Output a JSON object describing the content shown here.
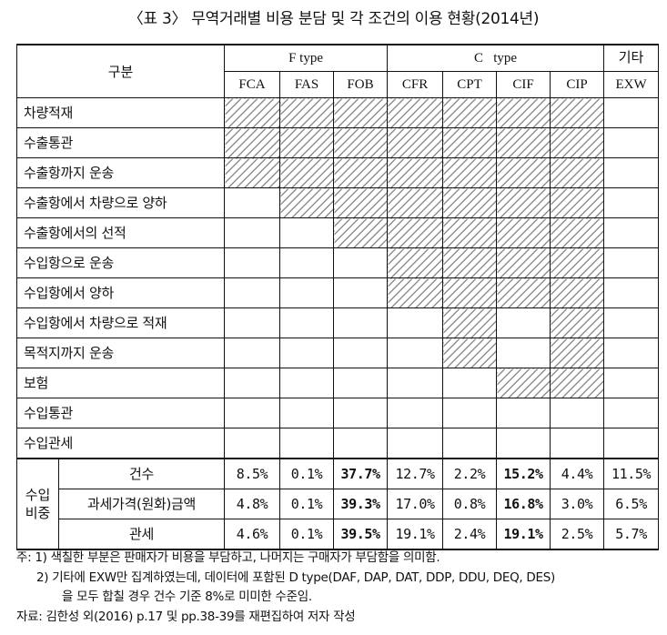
{
  "title": "〈표 3〉 무역거래별 비용 분담 및 각 조건의 이용 현황(2014년)",
  "header": {
    "gubun": "구분",
    "groups": [
      {
        "label": "F type",
        "colspan": 3
      },
      {
        "label": "C   type",
        "colspan": 4
      },
      {
        "label": "기타",
        "colspan": 1
      }
    ],
    "terms": [
      "FCA",
      "FAS",
      "FOB",
      "CFR",
      "CPT",
      "CIF",
      "CIP",
      "EXW"
    ]
  },
  "cost_rows": [
    {
      "label": "차량적재",
      "hatched": [
        true,
        true,
        true,
        true,
        true,
        true,
        true,
        false
      ]
    },
    {
      "label": "수출통관",
      "hatched": [
        true,
        true,
        true,
        true,
        true,
        true,
        true,
        false
      ]
    },
    {
      "label": "수출항까지 운송",
      "hatched": [
        true,
        true,
        true,
        true,
        true,
        true,
        true,
        false
      ]
    },
    {
      "label": "수출항에서 차량으로 양하",
      "hatched": [
        false,
        true,
        true,
        true,
        true,
        true,
        true,
        false
      ]
    },
    {
      "label": "수출항에서의 선적",
      "hatched": [
        false,
        false,
        true,
        true,
        true,
        true,
        true,
        false
      ]
    },
    {
      "label": "수입항으로 운송",
      "hatched": [
        false,
        false,
        false,
        true,
        true,
        true,
        true,
        false
      ]
    },
    {
      "label": "수입항에서 양하",
      "hatched": [
        false,
        false,
        false,
        true,
        true,
        true,
        true,
        false
      ]
    },
    {
      "label": "수입항에서 차량으로 적재",
      "hatched": [
        false,
        false,
        false,
        false,
        true,
        false,
        true,
        false
      ]
    },
    {
      "label": "목적지까지 운송",
      "hatched": [
        false,
        false,
        false,
        false,
        true,
        false,
        true,
        false
      ]
    },
    {
      "label": "보험",
      "hatched": [
        false,
        false,
        false,
        false,
        false,
        true,
        true,
        false
      ]
    },
    {
      "label": "수입통관",
      "hatched": [
        false,
        false,
        false,
        false,
        false,
        false,
        false,
        false
      ]
    },
    {
      "label": "수입관세",
      "hatched": [
        false,
        false,
        false,
        false,
        false,
        false,
        false,
        false
      ]
    }
  ],
  "import_share": {
    "group_label_line1": "수입",
    "group_label_line2": "비중",
    "rows": [
      {
        "label": "건수",
        "values": [
          "8.5%",
          "0.1%",
          "37.7%",
          "12.7%",
          "2.2%",
          "15.2%",
          "4.4%",
          "11.5%"
        ],
        "bold": [
          false,
          false,
          true,
          false,
          false,
          true,
          false,
          false
        ]
      },
      {
        "label": "과세가격(원화)금액",
        "values": [
          "4.8%",
          "0.1%",
          "39.3%",
          "17.0%",
          "0.8%",
          "16.8%",
          "3.0%",
          "6.5%"
        ],
        "bold": [
          false,
          false,
          true,
          false,
          false,
          true,
          false,
          false
        ]
      },
      {
        "label": "관세",
        "values": [
          "4.6%",
          "0.1%",
          "39.5%",
          "19.1%",
          "2.4%",
          "19.1%",
          "2.5%",
          "5.7%"
        ],
        "bold": [
          false,
          false,
          true,
          false,
          false,
          true,
          false,
          false
        ]
      }
    ]
  },
  "notes": {
    "note1": "주: 1) 색칠한 부분은 판매자가 비용을 부담하고, 나머지는 구매자가 부담함을 의미함.",
    "note2_line1": "2) 기타에 EXW만 집계하였는데, 데이터에 포함된 D type(DAF, DAP, DAT, DDP, DDU, DEQ, DES)",
    "note2_line2": "을 모두 합칠 경우 건수 기준 8%로 미미한 수준임.",
    "source": "자료: 김한성 외(2016) p.17 및 pp.38-39를 재편집하여 저자 작성"
  },
  "style": {
    "hatch_color": "#8f8f8f",
    "line_color": "#111111"
  }
}
